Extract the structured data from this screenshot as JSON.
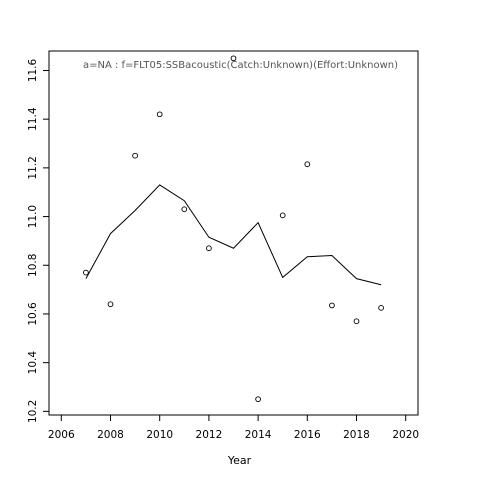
{
  "chart_data": {
    "type": "scatter",
    "title": "",
    "annotation": "a=NA  :  f=FLT05:SSBacoustic(Catch:Unknown)(Effort:Unknown)",
    "xlabel": "Year",
    "ylabel": "",
    "xlim": [
      2005.5,
      2020.5
    ],
    "ylim": [
      10.185,
      11.68
    ],
    "x_ticks": [
      2006,
      2008,
      2010,
      2012,
      2014,
      2016,
      2018,
      2020
    ],
    "y_ticks": [
      10.2,
      10.4,
      10.6,
      10.8,
      11.0,
      11.2,
      11.4,
      11.6
    ],
    "grid": false,
    "legend": "none",
    "series": [
      {
        "kind": "points",
        "x": [
          2007,
          2008,
          2009,
          2010,
          2011,
          2012,
          2013,
          2014,
          2015,
          2016,
          2017,
          2018,
          2019
        ],
        "y": [
          10.77,
          10.64,
          11.25,
          11.42,
          11.03,
          10.87,
          11.65,
          10.25,
          11.005,
          11.215,
          10.635,
          10.57,
          10.625
        ]
      },
      {
        "kind": "line",
        "x": [
          2007,
          2008,
          2009,
          2010,
          2011,
          2012,
          2013,
          2014,
          2015,
          2016,
          2017,
          2018,
          2019
        ],
        "y": [
          10.745,
          10.93,
          11.025,
          11.13,
          11.065,
          10.915,
          10.87,
          10.975,
          10.75,
          10.835,
          10.84,
          10.745,
          10.72
        ]
      }
    ]
  }
}
